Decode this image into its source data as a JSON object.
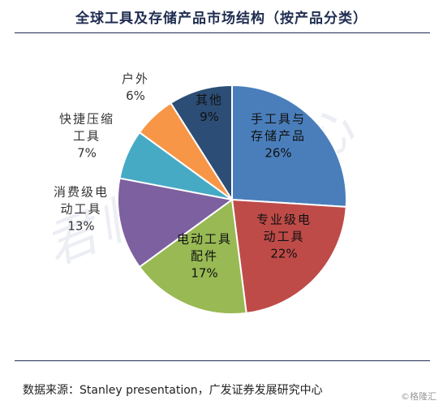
{
  "title": "全球工具及存储产品市场结构（按产品分类）",
  "source": "数据来源：Stanley presentation，广发证券发展研究中心",
  "credit": "©格隆汇",
  "watermark": "君临研究中心",
  "chart_data": {
    "type": "pie",
    "title": "全球工具及存储产品市场结构（按产品分类）",
    "slices": [
      {
        "label": [
          "手工具与",
          "存储产品"
        ],
        "value": 26,
        "value_label": "26%",
        "color": "#4a7ebb",
        "label_color": "#111111"
      },
      {
        "label": [
          "专业级电",
          "动工具"
        ],
        "value": 22,
        "value_label": "22%",
        "color": "#be4b48",
        "label_color": "#111111"
      },
      {
        "label": [
          "电动工具",
          "配件"
        ],
        "value": 17,
        "value_label": "17%",
        "color": "#98b954",
        "label_color": "#111111"
      },
      {
        "label": [
          "消费级电",
          "动工具"
        ],
        "value": 13,
        "value_label": "13%",
        "color": "#7d60a0",
        "label_color": "#333333"
      },
      {
        "label": [
          "快捷压缩",
          "工具"
        ],
        "value": 7,
        "value_label": "7%",
        "color": "#46aac5",
        "label_color": "#333333"
      },
      {
        "label": [
          "户外"
        ],
        "value": 6,
        "value_label": "6%",
        "color": "#f79646",
        "label_color": "#333333"
      },
      {
        "label": [
          "其他"
        ],
        "value": 9,
        "value_label": "9%",
        "color": "#2c4d75",
        "label_color": "#111111"
      }
    ]
  }
}
